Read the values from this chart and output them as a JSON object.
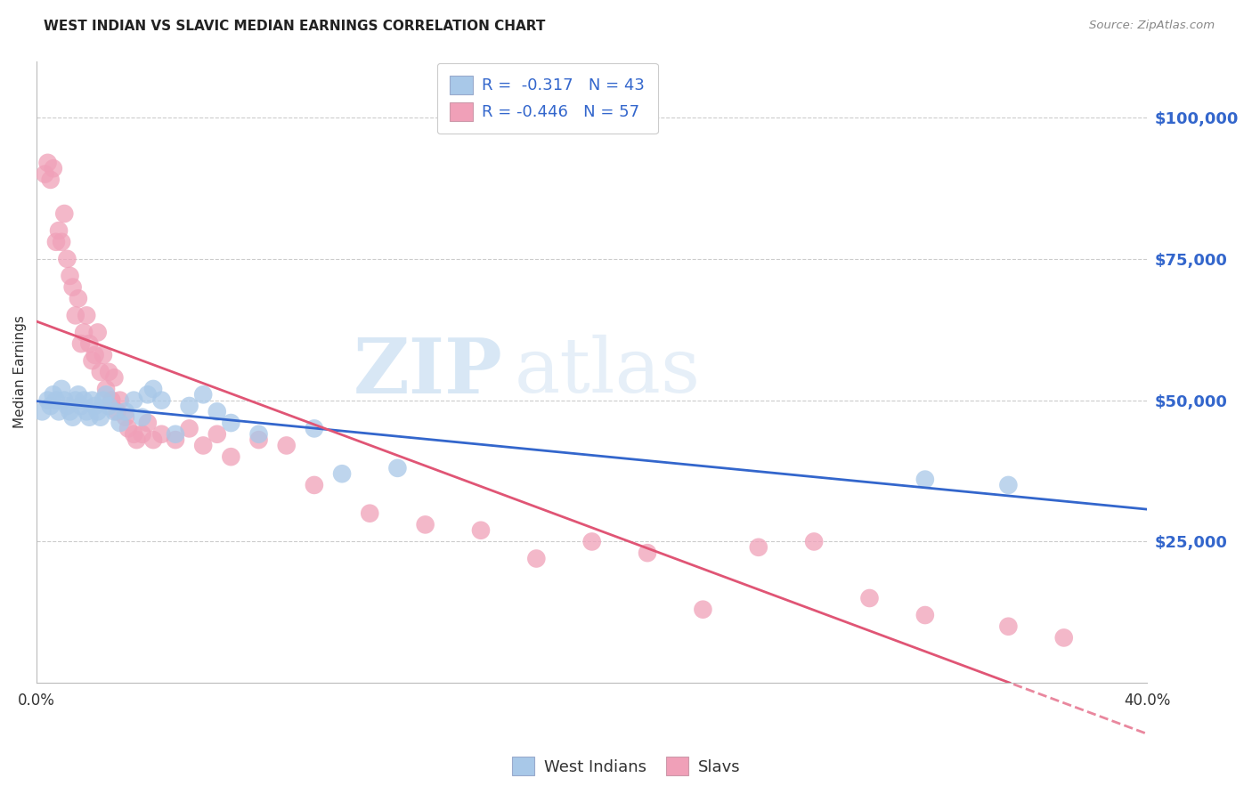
{
  "title": "WEST INDIAN VS SLAVIC MEDIAN EARNINGS CORRELATION CHART",
  "source": "Source: ZipAtlas.com",
  "ylabel": "Median Earnings",
  "xlim": [
    0.0,
    0.4
  ],
  "ylim": [
    0,
    110000
  ],
  "yticks": [
    25000,
    50000,
    75000,
    100000
  ],
  "ytick_labels": [
    "$25,000",
    "$50,000",
    "$75,000",
    "$100,000"
  ],
  "xticks": [
    0.0,
    0.05,
    0.1,
    0.15,
    0.2,
    0.25,
    0.3,
    0.35,
    0.4
  ],
  "xtick_labels": [
    "0.0%",
    "",
    "",
    "",
    "",
    "",
    "",
    "",
    "40.0%"
  ],
  "blue_R": -0.317,
  "blue_N": 43,
  "pink_R": -0.446,
  "pink_N": 57,
  "blue_color": "#a8c8e8",
  "pink_color": "#f0a0b8",
  "blue_line_color": "#3366cc",
  "pink_line_color": "#e05575",
  "watermark_zip": "ZIP",
  "watermark_atlas": "atlas",
  "axis_label_color": "#3366cc",
  "legend_text_color": "#3366cc",
  "blue_scatter_x": [
    0.002,
    0.004,
    0.005,
    0.006,
    0.007,
    0.008,
    0.009,
    0.01,
    0.011,
    0.012,
    0.013,
    0.014,
    0.015,
    0.016,
    0.017,
    0.018,
    0.019,
    0.02,
    0.021,
    0.022,
    0.023,
    0.024,
    0.025,
    0.026,
    0.028,
    0.03,
    0.032,
    0.035,
    0.038,
    0.04,
    0.042,
    0.045,
    0.05,
    0.055,
    0.06,
    0.065,
    0.07,
    0.08,
    0.1,
    0.11,
    0.13,
    0.32,
    0.35
  ],
  "blue_scatter_y": [
    48000,
    50000,
    49000,
    51000,
    50000,
    48000,
    52000,
    50000,
    49000,
    48000,
    47000,
    50000,
    51000,
    49000,
    50000,
    48000,
    47000,
    50000,
    49000,
    48000,
    47000,
    50000,
    51000,
    49000,
    48000,
    46000,
    48000,
    50000,
    47000,
    51000,
    52000,
    50000,
    44000,
    49000,
    51000,
    48000,
    46000,
    44000,
    45000,
    37000,
    38000,
    36000,
    35000
  ],
  "pink_scatter_x": [
    0.003,
    0.004,
    0.005,
    0.006,
    0.007,
    0.008,
    0.009,
    0.01,
    0.011,
    0.012,
    0.013,
    0.014,
    0.015,
    0.016,
    0.017,
    0.018,
    0.019,
    0.02,
    0.021,
    0.022,
    0.023,
    0.024,
    0.025,
    0.026,
    0.027,
    0.028,
    0.029,
    0.03,
    0.032,
    0.033,
    0.035,
    0.036,
    0.038,
    0.04,
    0.042,
    0.045,
    0.05,
    0.055,
    0.06,
    0.065,
    0.07,
    0.08,
    0.09,
    0.1,
    0.12,
    0.14,
    0.16,
    0.18,
    0.2,
    0.22,
    0.24,
    0.26,
    0.28,
    0.3,
    0.32,
    0.35,
    0.37
  ],
  "pink_scatter_y": [
    90000,
    92000,
    89000,
    91000,
    78000,
    80000,
    78000,
    83000,
    75000,
    72000,
    70000,
    65000,
    68000,
    60000,
    62000,
    65000,
    60000,
    57000,
    58000,
    62000,
    55000,
    58000,
    52000,
    55000,
    50000,
    54000,
    48000,
    50000,
    47000,
    45000,
    44000,
    43000,
    44000,
    46000,
    43000,
    44000,
    43000,
    45000,
    42000,
    44000,
    40000,
    43000,
    42000,
    35000,
    30000,
    28000,
    27000,
    22000,
    25000,
    23000,
    13000,
    24000,
    25000,
    15000,
    12000,
    10000,
    8000
  ]
}
